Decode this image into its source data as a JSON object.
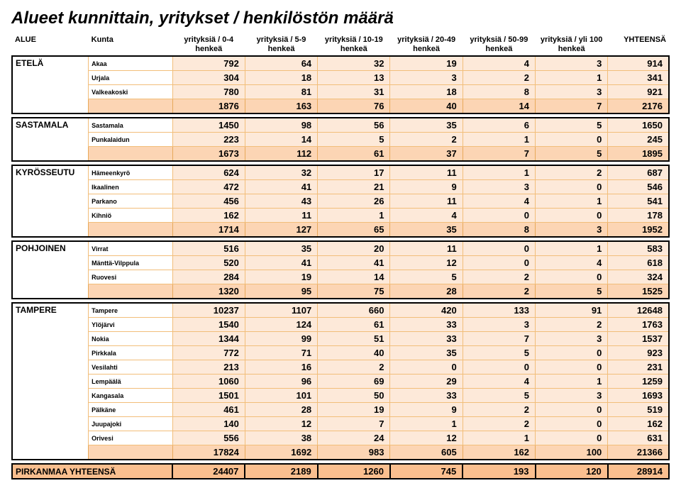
{
  "title": "Alueet kunnittain, yritykset / henkilöstön määrä",
  "headers": {
    "alue": "ALUE",
    "kunta": "Kunta",
    "c1": "yrityksiä / 0-4 henkeä",
    "c2": "yrityksiä / 5-9 henkeä",
    "c3": "yrityksiä / 10-19 henkeä",
    "c4": "yrityksiä / 20-49 henkeä",
    "c5": "yrityksiä / 50-99 henkeä",
    "c6": "yrityksiä / yli 100 henkeä",
    "yht": "YHTEENSÄ"
  },
  "regions": [
    {
      "name": "ETELÄ",
      "rows": [
        {
          "kunta": "Akaa",
          "v": [
            792,
            64,
            32,
            19,
            4,
            3,
            914
          ]
        },
        {
          "kunta": "Urjala",
          "v": [
            304,
            18,
            13,
            3,
            2,
            1,
            341
          ]
        },
        {
          "kunta": "Valkeakoski",
          "v": [
            780,
            81,
            31,
            18,
            8,
            3,
            921
          ]
        }
      ],
      "subtotal": [
        1876,
        163,
        76,
        40,
        14,
        7,
        2176
      ]
    },
    {
      "name": "SASTAMALA",
      "rows": [
        {
          "kunta": "Sastamala",
          "v": [
            1450,
            98,
            56,
            35,
            6,
            5,
            1650
          ]
        },
        {
          "kunta": "Punkalaidun",
          "v": [
            223,
            14,
            5,
            2,
            1,
            0,
            245
          ]
        }
      ],
      "subtotal": [
        1673,
        112,
        61,
        37,
        7,
        5,
        1895
      ]
    },
    {
      "name": "KYRÖSSEUTU",
      "rows": [
        {
          "kunta": "Hämeenkyrö",
          "v": [
            624,
            32,
            17,
            11,
            1,
            2,
            687
          ]
        },
        {
          "kunta": "Ikaalinen",
          "v": [
            472,
            41,
            21,
            9,
            3,
            0,
            546
          ]
        },
        {
          "kunta": "Parkano",
          "v": [
            456,
            43,
            26,
            11,
            4,
            1,
            541
          ]
        },
        {
          "kunta": "Kihniö",
          "v": [
            162,
            11,
            1,
            4,
            0,
            0,
            178
          ]
        }
      ],
      "subtotal": [
        1714,
        127,
        65,
        35,
        8,
        3,
        1952
      ]
    },
    {
      "name": "POHJOINEN",
      "rows": [
        {
          "kunta": "Virrat",
          "v": [
            516,
            35,
            20,
            11,
            0,
            1,
            583
          ]
        },
        {
          "kunta": "Mänttä-Vilppula",
          "v": [
            520,
            41,
            41,
            12,
            0,
            4,
            618
          ]
        },
        {
          "kunta": "Ruovesi",
          "v": [
            284,
            19,
            14,
            5,
            2,
            0,
            324
          ]
        }
      ],
      "subtotal": [
        1320,
        95,
        75,
        28,
        2,
        5,
        1525
      ]
    },
    {
      "name": "TAMPERE",
      "rows": [
        {
          "kunta": "Tampere",
          "v": [
            10237,
            1107,
            660,
            420,
            133,
            91,
            12648
          ]
        },
        {
          "kunta": "Ylöjärvi",
          "v": [
            1540,
            124,
            61,
            33,
            3,
            2,
            1763
          ]
        },
        {
          "kunta": "Nokia",
          "v": [
            1344,
            99,
            51,
            33,
            7,
            3,
            1537
          ]
        },
        {
          "kunta": "Pirkkala",
          "v": [
            772,
            71,
            40,
            35,
            5,
            0,
            923
          ]
        },
        {
          "kunta": "Vesilahti",
          "v": [
            213,
            16,
            2,
            0,
            0,
            0,
            231
          ]
        },
        {
          "kunta": "Lempäälä",
          "v": [
            1060,
            96,
            69,
            29,
            4,
            1,
            1259
          ]
        },
        {
          "kunta": "Kangasala",
          "v": [
            1501,
            101,
            50,
            33,
            5,
            3,
            1693
          ]
        },
        {
          "kunta": "Pälkäne",
          "v": [
            461,
            28,
            19,
            9,
            2,
            0,
            519
          ]
        },
        {
          "kunta": "Juupajoki",
          "v": [
            140,
            12,
            7,
            1,
            2,
            0,
            162
          ]
        },
        {
          "kunta": "Orivesi",
          "v": [
            556,
            38,
            24,
            12,
            1,
            0,
            631
          ]
        }
      ],
      "subtotal": [
        17824,
        1692,
        983,
        605,
        162,
        100,
        21366
      ]
    }
  ],
  "grand": {
    "label": "PIRKANMAA YHTEENSÄ",
    "v": [
      24407,
      2189,
      1260,
      745,
      193,
      120,
      28914
    ]
  },
  "colors": {
    "row_bg": "#fde9d9",
    "subtotal_bg": "#fcd5b4",
    "grand_bg": "#fabf8f",
    "border": "#f2be7a"
  }
}
